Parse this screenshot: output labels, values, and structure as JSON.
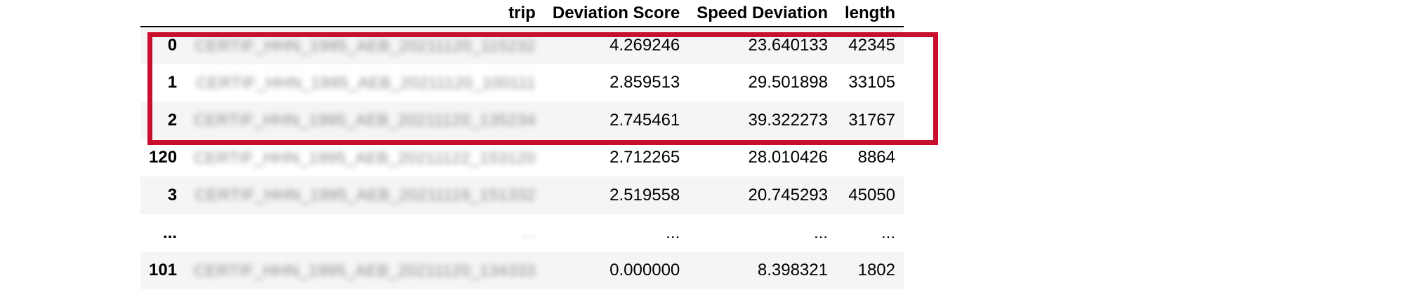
{
  "table": {
    "columns": {
      "index": "",
      "trip": "trip",
      "deviation_score": "Deviation Score",
      "speed_deviation": "Speed Deviation",
      "length": "length"
    },
    "rows": [
      {
        "index": "0",
        "trip": "CERTIF_HHN_1995_AEB_20211120_115232",
        "deviation_score": "4.269246",
        "speed_deviation": "23.640133",
        "length": "42345"
      },
      {
        "index": "1",
        "trip": "CERTIF_HHN_1995_AEB_20211120_100111",
        "deviation_score": "2.859513",
        "speed_deviation": "29.501898",
        "length": "33105"
      },
      {
        "index": "2",
        "trip": "CERTIF_HHN_1995_AEB_20211120_135234",
        "deviation_score": "2.745461",
        "speed_deviation": "39.322273",
        "length": "31767"
      },
      {
        "index": "120",
        "trip": "CERTIF_HHN_1995_AEB_20211122_153120",
        "deviation_score": "2.712265",
        "speed_deviation": "28.010426",
        "length": "8864"
      },
      {
        "index": "3",
        "trip": "CERTIF_HHN_1995_AEB_20211119_151332",
        "deviation_score": "2.519558",
        "speed_deviation": "20.745293",
        "length": "45050"
      },
      {
        "index": "...",
        "trip": "...",
        "deviation_score": "...",
        "speed_deviation": "...",
        "length": "..."
      },
      {
        "index": "101",
        "trip": "CERTIF_HHN_1995_AEB_20211120_134333",
        "deviation_score": "0.000000",
        "speed_deviation": "8.398321",
        "length": "1802"
      }
    ]
  },
  "highlight": {
    "color": "#c8102e",
    "covers_rows": [
      "0",
      "1",
      "2"
    ]
  },
  "styles": {
    "row_stripe_color": "#f5f5f5",
    "header_border_color": "#000000"
  }
}
